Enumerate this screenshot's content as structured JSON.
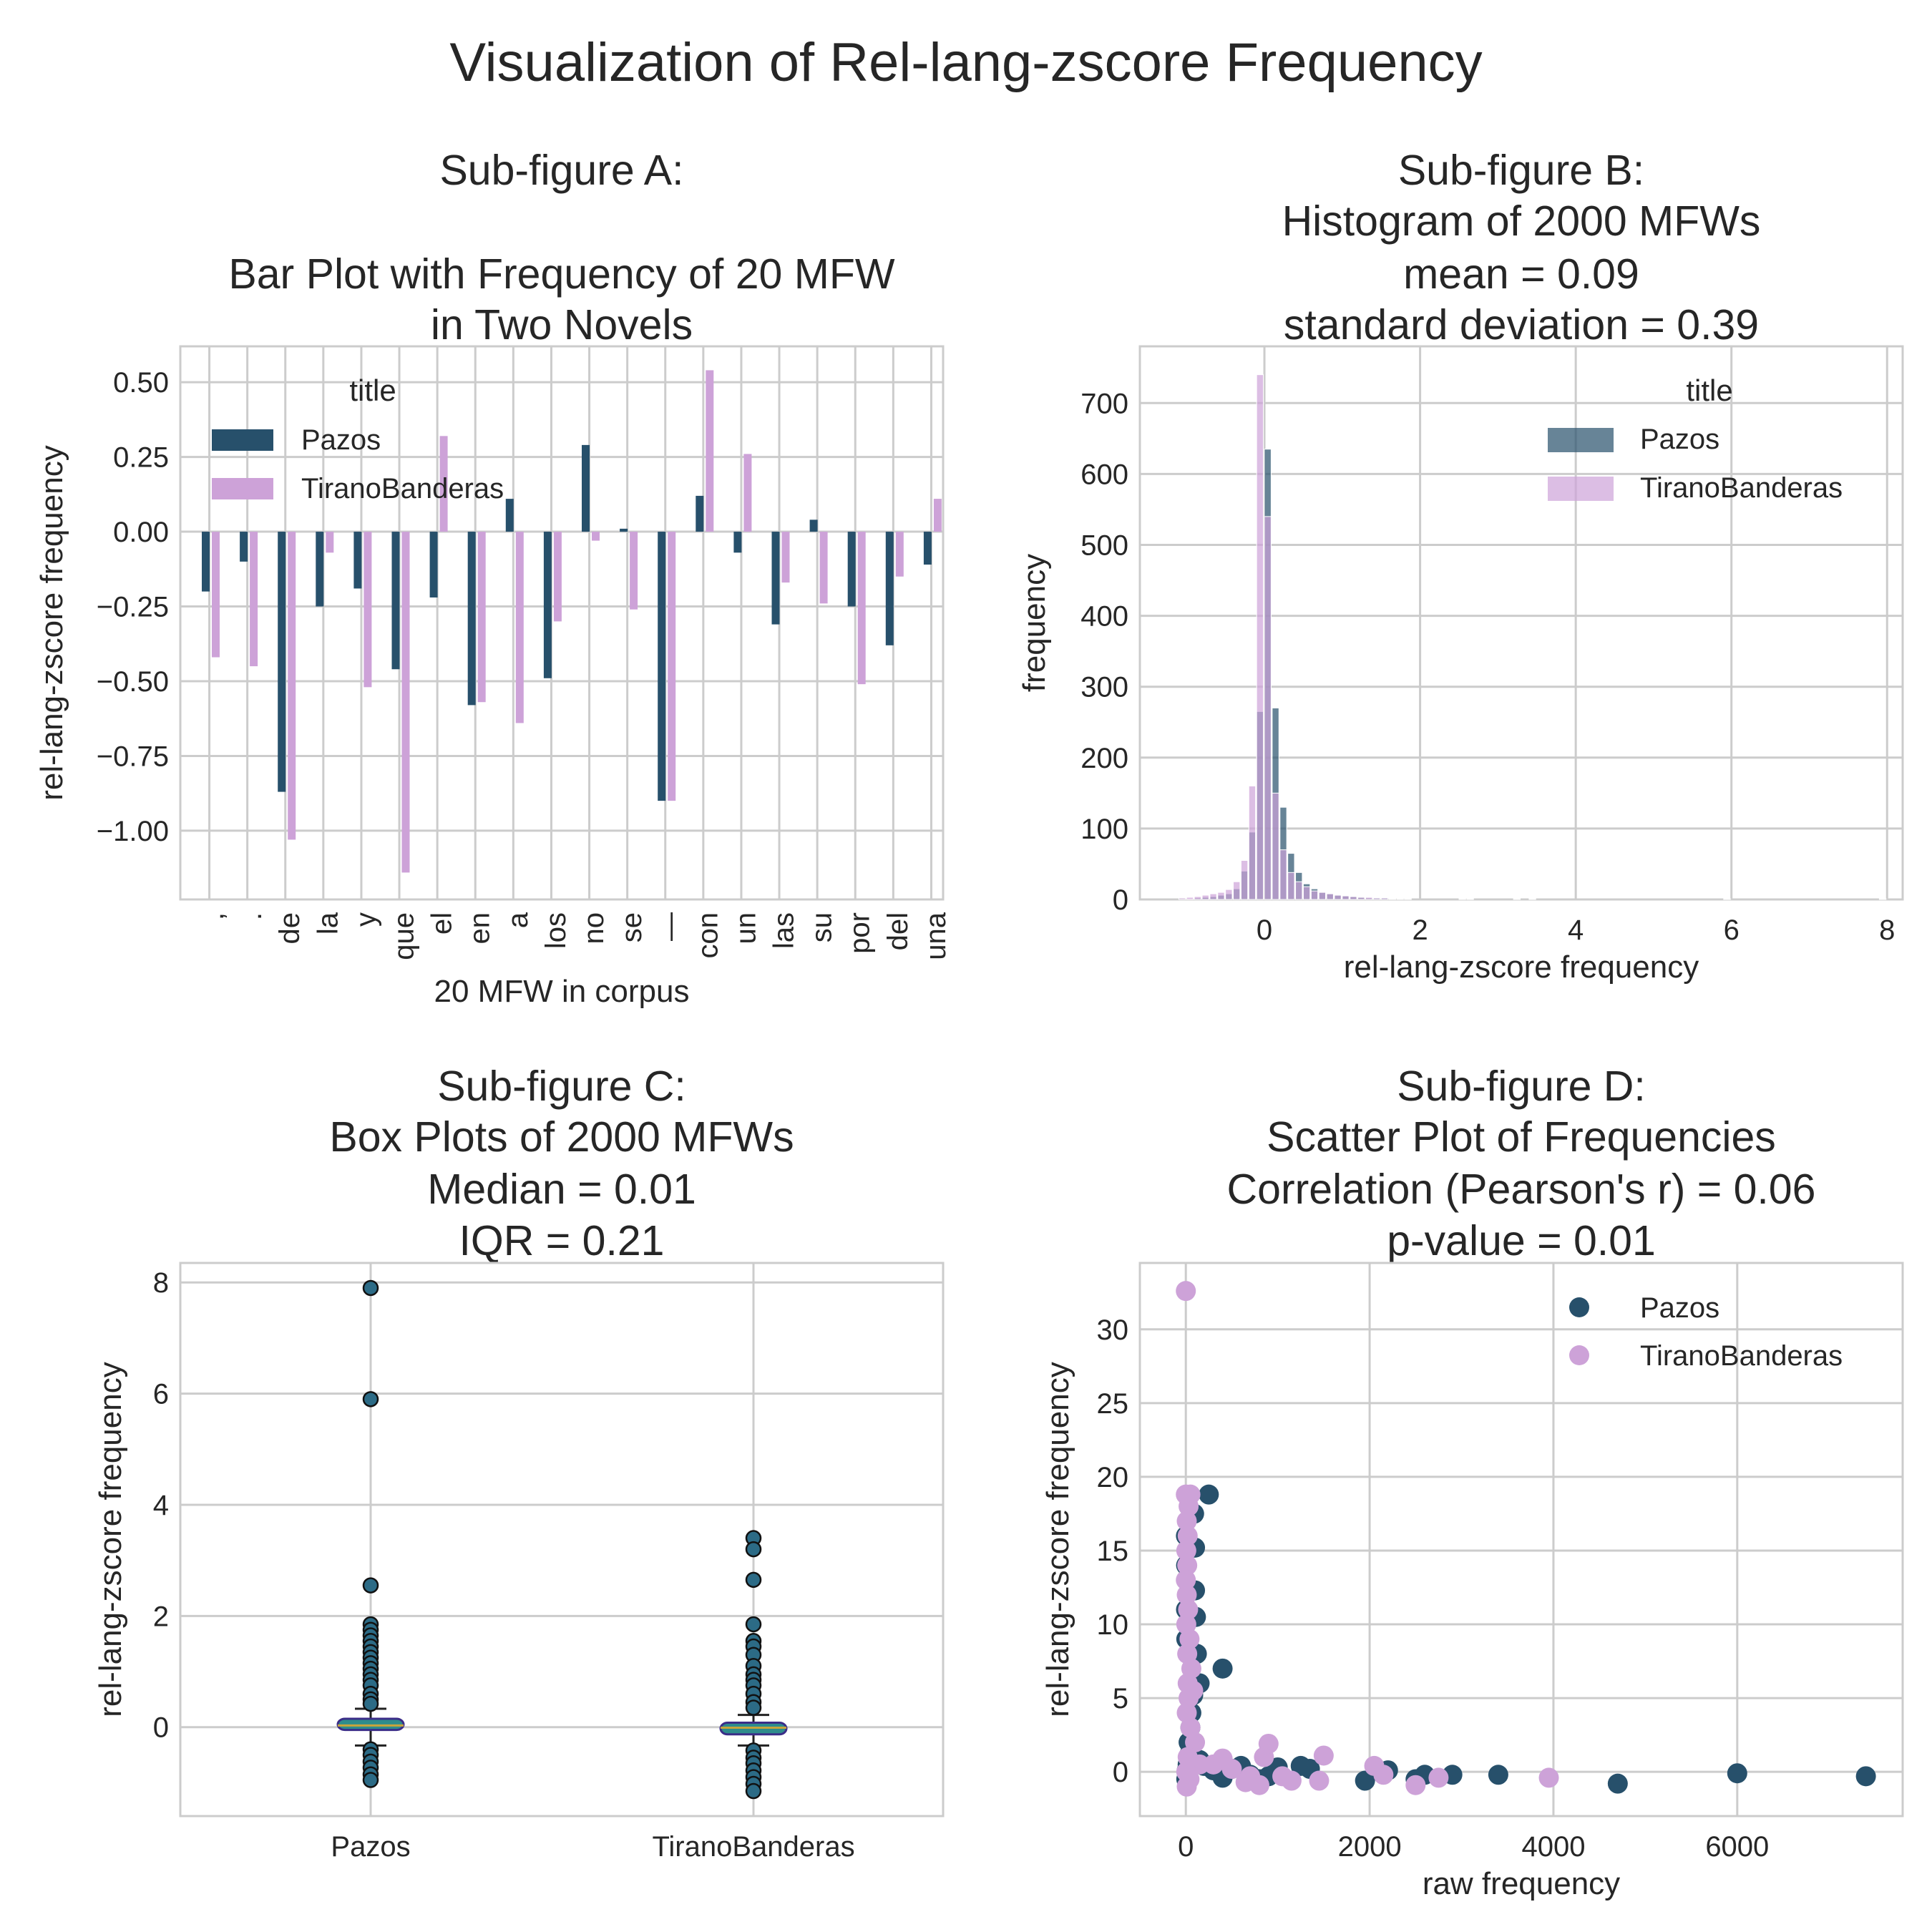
{
  "figure": {
    "title": "Visualization of Rel-lang-zscore Frequency"
  },
  "colors": {
    "pazos": "#27506b",
    "tirano": "#cda2d8",
    "box_fill": "#2e8c8c",
    "box_edge": "#3b2d88",
    "grid": "#cccccc"
  },
  "chart_data": [
    {
      "id": "A",
      "type": "bar",
      "title_lines": [
        "Sub-figure A:",
        "",
        "Bar Plot with Frequency of 20 MFW",
        "in Two Novels"
      ],
      "xlabel": "20 MFW in corpus",
      "ylabel": "rel-lang-zscore frequency",
      "ylim": [
        -1.23,
        0.62
      ],
      "yticks": [
        0.5,
        0.25,
        0.0,
        -0.25,
        -0.5,
        -0.75,
        -1.0
      ],
      "ytick_labels": [
        "0.50",
        "0.25",
        "0.00",
        "−0.25",
        "−0.50",
        "−0.75",
        "−1.00"
      ],
      "categories": [
        ",",
        ".",
        "de",
        "la",
        "y",
        "que",
        "el",
        "en",
        "a",
        "los",
        "no",
        "se",
        "—",
        "con",
        "un",
        "las",
        "su",
        "por",
        "del",
        "una"
      ],
      "series": [
        {
          "name": "Pazos",
          "values": [
            -0.2,
            -0.1,
            -0.87,
            -0.25,
            -0.19,
            -0.46,
            -0.22,
            -0.58,
            0.11,
            -0.49,
            0.29,
            0.01,
            -0.9,
            0.12,
            -0.07,
            -0.31,
            0.04,
            -0.25,
            -0.38,
            -0.11
          ]
        },
        {
          "name": "TiranoBanderas",
          "values": [
            -0.42,
            -0.45,
            -1.03,
            -0.07,
            -0.52,
            -1.14,
            0.32,
            -0.57,
            -0.64,
            -0.3,
            -0.03,
            -0.26,
            -0.9,
            0.54,
            0.26,
            -0.17,
            -0.24,
            -0.51,
            -0.15,
            0.11
          ]
        }
      ],
      "legend": {
        "title": "title",
        "position": "upper-left"
      }
    },
    {
      "id": "B",
      "type": "histogram",
      "title_lines": [
        "Sub-figure B:",
        "Histogram of 2000 MFWs",
        "mean =  0.09",
        "standard deviation = 0.39"
      ],
      "xlabel": "rel-lang-zscore frequency",
      "ylabel": "frequency",
      "xlim": [
        -1.6,
        8.2
      ],
      "ylim": [
        0,
        780
      ],
      "xticks": [
        0,
        2,
        4,
        6,
        8
      ],
      "yticks": [
        0,
        100,
        200,
        300,
        400,
        500,
        600,
        700
      ],
      "bin_width": 0.1,
      "series": [
        {
          "name": "Pazos",
          "bins": [
            [
              -1.0,
              1
            ],
            [
              -0.9,
              2
            ],
            [
              -0.8,
              3
            ],
            [
              -0.7,
              4
            ],
            [
              -0.6,
              6
            ],
            [
              -0.5,
              8
            ],
            [
              -0.4,
              15
            ],
            [
              -0.3,
              40
            ],
            [
              -0.2,
              95
            ],
            [
              -0.1,
              265
            ],
            [
              0.0,
              635
            ],
            [
              0.1,
              270
            ],
            [
              0.2,
              130
            ],
            [
              0.3,
              65
            ],
            [
              0.4,
              38
            ],
            [
              0.5,
              22
            ],
            [
              0.6,
              15
            ],
            [
              0.7,
              10
            ],
            [
              0.8,
              8
            ],
            [
              0.9,
              6
            ],
            [
              1.0,
              5
            ],
            [
              1.1,
              4
            ],
            [
              1.2,
              3
            ],
            [
              1.3,
              2
            ],
            [
              1.4,
              2
            ],
            [
              1.5,
              2
            ],
            [
              1.6,
              1
            ],
            [
              1.7,
              1
            ],
            [
              1.8,
              1
            ],
            [
              2.5,
              1
            ],
            [
              5.9,
              1
            ],
            [
              7.9,
              1
            ]
          ]
        },
        {
          "name": "TiranoBanderas",
          "bins": [
            [
              -1.1,
              2
            ],
            [
              -1.0,
              3
            ],
            [
              -0.9,
              4
            ],
            [
              -0.8,
              6
            ],
            [
              -0.7,
              8
            ],
            [
              -0.6,
              10
            ],
            [
              -0.5,
              14
            ],
            [
              -0.4,
              25
            ],
            [
              -0.3,
              55
            ],
            [
              -0.2,
              160
            ],
            [
              -0.1,
              740
            ],
            [
              0.0,
              540
            ],
            [
              0.1,
              150
            ],
            [
              0.2,
              70
            ],
            [
              0.3,
              38
            ],
            [
              0.4,
              25
            ],
            [
              0.5,
              18
            ],
            [
              0.6,
              12
            ],
            [
              0.7,
              10
            ],
            [
              0.8,
              8
            ],
            [
              0.9,
              6
            ],
            [
              1.0,
              5
            ],
            [
              1.1,
              4
            ],
            [
              1.2,
              3
            ],
            [
              1.3,
              3
            ],
            [
              1.4,
              2
            ],
            [
              1.5,
              2
            ],
            [
              1.6,
              1
            ],
            [
              1.8,
              1
            ],
            [
              2.6,
              1
            ],
            [
              3.2,
              1
            ],
            [
              3.4,
              1
            ]
          ]
        }
      ],
      "legend": {
        "title": "title",
        "position": "upper-right"
      }
    },
    {
      "id": "C",
      "type": "box",
      "title_lines": [
        "Sub-figure C:",
        "Box Plots of 2000 MFWs",
        "Median =  0.01",
        "IQR = 0.21"
      ],
      "xlabel": "",
      "ylabel": "rel-lang-zscore frequency",
      "ylim": [
        -1.6,
        8.35
      ],
      "yticks": [
        0,
        2,
        4,
        6,
        8
      ],
      "categories": [
        "Pazos",
        "TiranoBanderas"
      ],
      "boxes": [
        {
          "name": "Pazos",
          "q1": -0.05,
          "median": 0.03,
          "q3": 0.15,
          "whisker_low": -0.33,
          "whisker_high": 0.33,
          "outliers": [
            7.9,
            5.9,
            2.55,
            1.85,
            1.75,
            1.65,
            1.55,
            1.45,
            1.35,
            1.25,
            1.15,
            1.05,
            0.95,
            0.85,
            0.75,
            0.6,
            0.5,
            0.42,
            -0.4,
            -0.5,
            -0.62,
            -0.73,
            -0.85,
            -0.95
          ]
        },
        {
          "name": "TiranoBanderas",
          "q1": -0.13,
          "median": -0.01,
          "q3": 0.08,
          "whisker_low": -0.33,
          "whisker_high": 0.22,
          "outliers": [
            3.4,
            3.2,
            2.65,
            1.85,
            1.55,
            1.45,
            1.3,
            1.1,
            0.95,
            0.85,
            0.75,
            0.6,
            0.45,
            0.35,
            -0.42,
            -0.55,
            -0.65,
            -0.78,
            -0.9,
            -1.02,
            -1.15
          ]
        }
      ]
    },
    {
      "id": "D",
      "type": "scatter",
      "title_lines": [
        "Sub-figure D:",
        "Scatter Plot of Frequencies",
        "Correlation (Pearson's r) =  0.06",
        "p-value = 0.01"
      ],
      "xlabel": "raw frequency",
      "ylabel": "rel-lang-zscore frequency",
      "xlim": [
        -500,
        7800
      ],
      "ylim": [
        -3.0,
        34.5
      ],
      "xticks": [
        0,
        2000,
        4000,
        6000
      ],
      "yticks": [
        0,
        5,
        10,
        15,
        20,
        25,
        30
      ],
      "series": [
        {
          "name": "Pazos",
          "points": [
            [
              7400,
              -0.3
            ],
            [
              6000,
              -0.1
            ],
            [
              4700,
              -0.8
            ],
            [
              3400,
              -0.2
            ],
            [
              2900,
              -0.2
            ],
            [
              2600,
              -0.2
            ],
            [
              2500,
              -0.5
            ],
            [
              2200,
              0.1
            ],
            [
              1950,
              -0.6
            ],
            [
              1350,
              0.2
            ],
            [
              1250,
              0.4
            ],
            [
              1000,
              0.3
            ],
            [
              900,
              -0.3
            ],
            [
              800,
              -0.5
            ],
            [
              700,
              -0.2
            ],
            [
              600,
              0.4
            ],
            [
              500,
              0.2
            ],
            [
              400,
              -0.4
            ],
            [
              400,
              7.0
            ],
            [
              300,
              0.1
            ],
            [
              250,
              18.8
            ],
            [
              200,
              0.4
            ],
            [
              150,
              6.0
            ],
            [
              150,
              0.8
            ],
            [
              120,
              8.0
            ],
            [
              110,
              10.5
            ],
            [
              100,
              12.3
            ],
            [
              100,
              15.2
            ],
            [
              90,
              17.5
            ],
            [
              80,
              5.2
            ],
            [
              60,
              4.0
            ],
            [
              50,
              3.0
            ],
            [
              40,
              1.2
            ],
            [
              30,
              2.0
            ],
            [
              20,
              0.5
            ],
            [
              10,
              0.1
            ],
            [
              5,
              -0.5
            ],
            [
              5,
              9.0
            ],
            [
              3,
              14.0
            ],
            [
              2,
              11.0
            ],
            [
              1,
              16.0
            ]
          ]
        },
        {
          "name": "TiranoBanderas",
          "points": [
            [
              0,
              32.6
            ],
            [
              0,
              18.8
            ],
            [
              50,
              18.8
            ],
            [
              30,
              18.0
            ],
            [
              10,
              17.0
            ],
            [
              20,
              16.0
            ],
            [
              5,
              15.0
            ],
            [
              15,
              14.0
            ],
            [
              0,
              13.0
            ],
            [
              10,
              12.0
            ],
            [
              25,
              11.0
            ],
            [
              5,
              10.0
            ],
            [
              40,
              9.0
            ],
            [
              15,
              8.0
            ],
            [
              60,
              7.0
            ],
            [
              20,
              6.0
            ],
            [
              80,
              5.5
            ],
            [
              30,
              5.0
            ],
            [
              10,
              4.0
            ],
            [
              50,
              3.0
            ],
            [
              100,
              2.0
            ],
            [
              20,
              1.0
            ],
            [
              150,
              0.5
            ],
            [
              5,
              0.0
            ],
            [
              40,
              -0.5
            ],
            [
              10,
              -1.0
            ],
            [
              300,
              0.5
            ],
            [
              400,
              0.9
            ],
            [
              500,
              0.2
            ],
            [
              650,
              -0.7
            ],
            [
              700,
              -0.3
            ],
            [
              800,
              -0.9
            ],
            [
              850,
              1.0
            ],
            [
              900,
              1.9
            ],
            [
              1050,
              -0.3
            ],
            [
              1150,
              -0.6
            ],
            [
              1450,
              -0.6
            ],
            [
              1500,
              1.1
            ],
            [
              2050,
              0.4
            ],
            [
              2150,
              -0.2
            ],
            [
              2500,
              -0.9
            ],
            [
              2750,
              -0.4
            ],
            [
              3950,
              -0.4
            ]
          ]
        }
      ],
      "legend": {
        "position": "upper-right"
      }
    }
  ]
}
